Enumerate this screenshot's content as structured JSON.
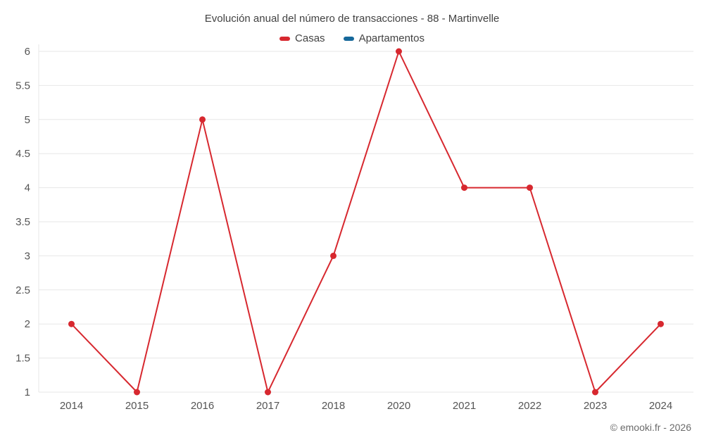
{
  "chart_data": {
    "type": "line",
    "title": "Evolución anual del número de transacciones - 88 - Martinvelle",
    "categories": [
      "2014",
      "2015",
      "2016",
      "2017",
      "2018",
      "2020",
      "2021",
      "2022",
      "2023",
      "2024"
    ],
    "series": [
      {
        "name": "Casas",
        "color": "#d7282f",
        "values": [
          2,
          1,
          5,
          1,
          3,
          6,
          4,
          4,
          1,
          2
        ]
      },
      {
        "name": "Apartamentos",
        "color": "#16689a",
        "values": []
      }
    ],
    "xlabel": "",
    "ylabel": "",
    "ylim": [
      1,
      6
    ],
    "ytick_step": 0.5,
    "grid": "horizontal",
    "grid_color": "#e7e7e7",
    "axis_text_color": "#555555",
    "legend_position": "top"
  },
  "footer": {
    "text": "© emooki.fr - 2026"
  }
}
